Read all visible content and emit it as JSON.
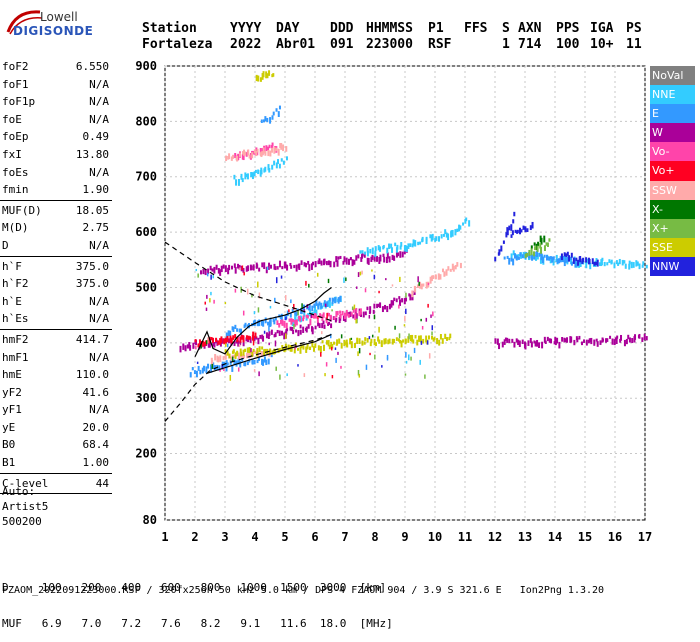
{
  "logo": {
    "line1": "Lowell",
    "line2": "DIGISONDE"
  },
  "header": {
    "row1": [
      "Station",
      "YYYY",
      "DAY",
      "DDD",
      "HHMMSS",
      "P1",
      "FFS",
      "S",
      "AXN",
      "PPS",
      "IGA",
      "PS"
    ],
    "row2": [
      "Fortaleza",
      "2022",
      "Abr01",
      "091",
      "223000",
      "RSF",
      "1",
      "714",
      "100",
      "10+",
      "11"
    ]
  },
  "params": [
    {
      "label": "foF2",
      "value": "6.550"
    },
    {
      "label": "foF1",
      "value": "N/A"
    },
    {
      "label": "foF1p",
      "value": "N/A"
    },
    {
      "label": "foE",
      "value": "N/A"
    },
    {
      "label": "foEp",
      "value": "0.49"
    },
    {
      "label": "fxI",
      "value": "13.80"
    },
    {
      "label": "foEs",
      "value": "N/A"
    },
    {
      "label": "fmin",
      "value": "1.90",
      "sep": true
    },
    {
      "label": "MUF(D)",
      "value": "18.05"
    },
    {
      "label": "M(D)",
      "value": "2.75"
    },
    {
      "label": "D",
      "value": "N/A",
      "sep": true
    },
    {
      "label": "h`F",
      "value": "375.0"
    },
    {
      "label": "h`F2",
      "value": "375.0"
    },
    {
      "label": "h`E",
      "value": "N/A"
    },
    {
      "label": "h`Es",
      "value": "N/A",
      "sep": true
    },
    {
      "label": "hmF2",
      "value": "414.7"
    },
    {
      "label": "hmF1",
      "value": "N/A"
    },
    {
      "label": "hmE",
      "value": "110.0"
    },
    {
      "label": "yF2",
      "value": "41.6"
    },
    {
      "label": "yF1",
      "value": "N/A"
    },
    {
      "label": "yE",
      "value": "20.0"
    },
    {
      "label": "B0",
      "value": "68.4"
    },
    {
      "label": "B1",
      "value": "1.00",
      "sep": true
    },
    {
      "label": "C-level",
      "value": "44",
      "sep": true
    }
  ],
  "auto": [
    "Auto:",
    "Artist5",
    "500200"
  ],
  "legend": [
    {
      "label": "NoVal",
      "color": "#808080"
    },
    {
      "label": "NNE",
      "color": "#33ccff"
    },
    {
      "label": "E",
      "color": "#3399ff"
    },
    {
      "label": "W",
      "color": "#aa0099"
    },
    {
      "label": "Vo-",
      "color": "#ff44aa"
    },
    {
      "label": "Vo+",
      "color": "#ff0022"
    },
    {
      "label": "SSW",
      "color": "#ffaaaa"
    },
    {
      "label": "X-",
      "color": "#007700"
    },
    {
      "label": "X+",
      "color": "#77bb44"
    },
    {
      "label": "SSE",
      "color": "#cccc00"
    },
    {
      "label": "NNW",
      "color": "#2222dd"
    }
  ],
  "footer": {
    "d_label": "D",
    "d_values": [
      "100",
      "200",
      "400",
      "600",
      "800",
      "1000",
      "1500",
      "3000",
      "[km]"
    ],
    "muf_label": "MUF",
    "muf_values": [
      "6.9",
      "7.0",
      "7.2",
      "7.6",
      "8.2",
      "9.1",
      "11.6",
      "18.0",
      "[MHz]"
    ],
    "file": "FZAOM_2022091223000.RSF / 320fx256h 50 kHz 5.0 km / DPS-4 FZAOM 904 / 3.9 S 321.6 E   Ion2Png 1.3.20"
  },
  "chart_data": {
    "type": "scatter",
    "xlim": [
      1,
      17
    ],
    "ylim": [
      80,
      900
    ],
    "xticks": [
      1,
      2,
      3,
      4,
      5,
      6,
      7,
      8,
      9,
      10,
      11,
      12,
      13,
      14,
      15,
      16,
      17
    ],
    "yticks": [
      80,
      200,
      300,
      400,
      500,
      600,
      700,
      800,
      900
    ],
    "grid": true,
    "series": [
      {
        "color": "#aa0099",
        "traces": [
          [
            [
              2.2,
              532
            ],
            [
              5.0,
              540
            ],
            [
              7.5,
              552
            ],
            [
              9.0,
              560
            ]
          ],
          [
            [
              6.5,
              440
            ],
            [
              8.5,
              470
            ],
            [
              9.3,
              490
            ]
          ],
          [
            [
              1.5,
              395
            ],
            [
              3.0,
              400
            ],
            [
              5.0,
              420
            ],
            [
              6.5,
              435
            ]
          ],
          [
            [
              12.0,
              400
            ],
            [
              14.0,
              403
            ],
            [
              16.0,
              405
            ],
            [
              17.0,
              408
            ]
          ]
        ]
      },
      {
        "color": "#33ccff",
        "traces": [
          [
            [
              7.5,
              565
            ],
            [
              9.0,
              575
            ],
            [
              10.5,
              600
            ],
            [
              11.1,
              620
            ]
          ],
          [
            [
              3.3,
              695
            ],
            [
              4.2,
              710
            ],
            [
              5.0,
              730
            ]
          ],
          [
            [
              5.2,
              440
            ],
            [
              6.0,
              460
            ],
            [
              6.8,
              480
            ]
          ],
          [
            [
              12.5,
              560
            ],
            [
              14.0,
              550
            ],
            [
              15.5,
              545
            ],
            [
              17.0,
              540
            ]
          ]
        ]
      },
      {
        "color": "#3399ff",
        "traces": [
          [
            [
              3.0,
              420
            ],
            [
              4.5,
              440
            ],
            [
              6.0,
              470
            ],
            [
              6.8,
              480
            ]
          ],
          [
            [
              1.8,
              348
            ],
            [
              3.0,
              360
            ],
            [
              4.5,
              372
            ]
          ],
          [
            [
              12.3,
              550
            ],
            [
              13.3,
              560
            ],
            [
              14.8,
              545
            ]
          ],
          [
            [
              4.2,
              800
            ],
            [
              4.8,
              820
            ]
          ]
        ]
      },
      {
        "color": "#ff44aa",
        "traces": [
          [
            [
              4.7,
              435
            ],
            [
              6.0,
              445
            ],
            [
              7.5,
              455
            ]
          ],
          [
            [
              3.3,
              740
            ],
            [
              4.0,
              745
            ],
            [
              4.7,
              755
            ]
          ]
        ]
      },
      {
        "color": "#ff0022",
        "traces": [
          [
            [
              2.0,
              400
            ],
            [
              3.0,
              405
            ],
            [
              4.0,
              412
            ]
          ]
        ]
      },
      {
        "color": "#ffaaaa",
        "traces": [
          [
            [
              3.0,
              735
            ],
            [
              4.2,
              745
            ],
            [
              5.0,
              755
            ]
          ],
          [
            [
              9.2,
              495
            ],
            [
              10.0,
              520
            ],
            [
              10.8,
              545
            ]
          ],
          [
            [
              2.5,
              370
            ],
            [
              3.5,
              378
            ],
            [
              4.5,
              385
            ]
          ]
        ]
      },
      {
        "color": "#cccc00",
        "traces": [
          [
            [
              3.0,
              380
            ],
            [
              5.0,
              390
            ],
            [
              7.0,
              400
            ],
            [
              9.0,
              405
            ],
            [
              10.5,
              408
            ]
          ],
          [
            [
              4.0,
              880
            ],
            [
              4.6,
              885
            ]
          ]
        ]
      },
      {
        "color": "#007700",
        "traces": [
          [
            [
              13.2,
              570
            ],
            [
              13.6,
              595
            ]
          ]
        ]
      },
      {
        "color": "#77bb44",
        "traces": [
          [
            [
              13.0,
              560
            ],
            [
              13.8,
              580
            ]
          ]
        ]
      },
      {
        "color": "#2222dd",
        "traces": [
          [
            [
              12.0,
              550
            ],
            [
              12.4,
              600
            ],
            [
              12.6,
              630
            ]
          ],
          [
            [
              14.2,
              560
            ],
            [
              14.8,
              550
            ],
            [
              15.4,
              545
            ]
          ],
          [
            [
              12.5,
              595
            ],
            [
              13.2,
              610
            ]
          ]
        ]
      }
    ],
    "curves": [
      {
        "style": "solid",
        "color": "#000000",
        "points": [
          [
            2.4,
            345
          ],
          [
            3.0,
            355
          ],
          [
            4.0,
            372
          ],
          [
            5.0,
            388
          ],
          [
            6.0,
            402
          ],
          [
            6.55,
            415
          ]
        ]
      },
      {
        "style": "solid",
        "color": "#000000",
        "points": [
          [
            2.0,
            375
          ],
          [
            2.4,
            420
          ],
          [
            2.6,
            390
          ],
          [
            3.0,
            380
          ],
          [
            3.4,
            410
          ],
          [
            3.8,
            430
          ],
          [
            4.2,
            440
          ],
          [
            4.6,
            445
          ],
          [
            5.0,
            450
          ],
          [
            5.5,
            460
          ],
          [
            6.0,
            475
          ],
          [
            6.3,
            490
          ],
          [
            6.55,
            500
          ]
        ]
      },
      {
        "style": "dashed",
        "color": "#000000",
        "points": [
          [
            1.0,
            582
          ],
          [
            2.0,
            545
          ],
          [
            3.0,
            510
          ],
          [
            4.0,
            485
          ],
          [
            5.0,
            468
          ],
          [
            6.0,
            450
          ],
          [
            6.55,
            440
          ]
        ]
      },
      {
        "style": "dashed",
        "color": "#000000",
        "points": [
          [
            1.0,
            258
          ],
          [
            1.5,
            290
          ],
          [
            2.0,
            325
          ],
          [
            2.5,
            350
          ],
          [
            3.0,
            362
          ],
          [
            4.0,
            378
          ],
          [
            5.0,
            392
          ],
          [
            6.0,
            405
          ],
          [
            6.55,
            415
          ]
        ]
      }
    ]
  }
}
